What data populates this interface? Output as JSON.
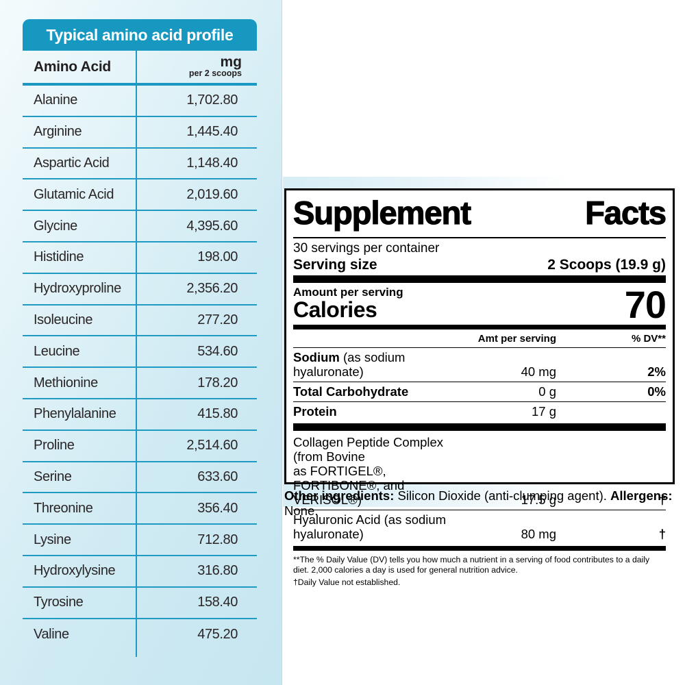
{
  "amino_table": {
    "title": "Typical amino acid profile",
    "col1_header": "Amino Acid",
    "col2_header": "mg",
    "col2_subheader": "per 2 scoops",
    "rows": [
      {
        "name": "Alanine",
        "mg": "1,702.80"
      },
      {
        "name": "Arginine",
        "mg": "1,445.40"
      },
      {
        "name": "Aspartic Acid",
        "mg": "1,148.40"
      },
      {
        "name": "Glutamic Acid",
        "mg": "2,019.60"
      },
      {
        "name": "Glycine",
        "mg": "4,395.60"
      },
      {
        "name": "Histidine",
        "mg": "198.00"
      },
      {
        "name": "Hydroxyproline",
        "mg": "2,356.20"
      },
      {
        "name": "Isoleucine",
        "mg": "277.20"
      },
      {
        "name": "Leucine",
        "mg": "534.60"
      },
      {
        "name": "Methionine",
        "mg": "178.20"
      },
      {
        "name": "Phenylalanine",
        "mg": "415.80"
      },
      {
        "name": "Proline",
        "mg": "2,514.60"
      },
      {
        "name": "Serine",
        "mg": "633.60"
      },
      {
        "name": "Threonine",
        "mg": "356.40"
      },
      {
        "name": "Lysine",
        "mg": "712.80"
      },
      {
        "name": "Hydroxylysine",
        "mg": "316.80"
      },
      {
        "name": "Tyrosine",
        "mg": "158.40"
      },
      {
        "name": "Valine",
        "mg": "475.20"
      }
    ]
  },
  "supplement_facts": {
    "title": "Supplement Facts",
    "servings_per_container": "30 servings per container",
    "serving_size_label": "Serving size",
    "serving_size_value": "2 Scoops (19.9 g)",
    "amount_per_serving_label": "Amount per serving",
    "calories_label": "Calories",
    "calories_value": "70",
    "col_amt_header": "Amt per serving",
    "col_dv_header": "% DV**",
    "nutrients": [
      {
        "name_bold": "Sodium",
        "name_rest": " (as sodium hyaluronate)",
        "amt": "40 mg",
        "dv": "2%"
      },
      {
        "name_bold": "Total Carbohydrate",
        "name_rest": "",
        "amt": "0 g",
        "dv": "0%"
      },
      {
        "name_bold": "Protein",
        "name_rest": "",
        "amt": "17 g",
        "dv": ""
      }
    ],
    "blend_rows": [
      {
        "line1": "Collagen Peptide Complex (from Bovine",
        "line2": "as FORTIGEL®, FORTIBONE®, and VERISOL®)",
        "amt": "17.5 g",
        "dv": "†"
      },
      {
        "line1": "Hyaluronic Acid (as sodium hyaluronate)",
        "line2": "",
        "amt": "80 mg",
        "dv": "†"
      }
    ],
    "footnote1": "**The % Daily Value (DV) tells you how much a nutrient in a serving of food contributes to a daily diet. 2,000 calories a day is used for general nutrition advice.",
    "footnote2": "†Daily Value not established."
  },
  "other_ingredients": {
    "label": "Other ingredients:",
    "value": " Silicon Dioxide (anti-clumping agent). ",
    "allergens_label": "Allergens:",
    "allergens_value": " None."
  },
  "colors": {
    "teal_header": "#1798c1",
    "table_line": "#1f9ac3",
    "panel_blue": "#cfeaf3",
    "label_black": "#000000"
  }
}
